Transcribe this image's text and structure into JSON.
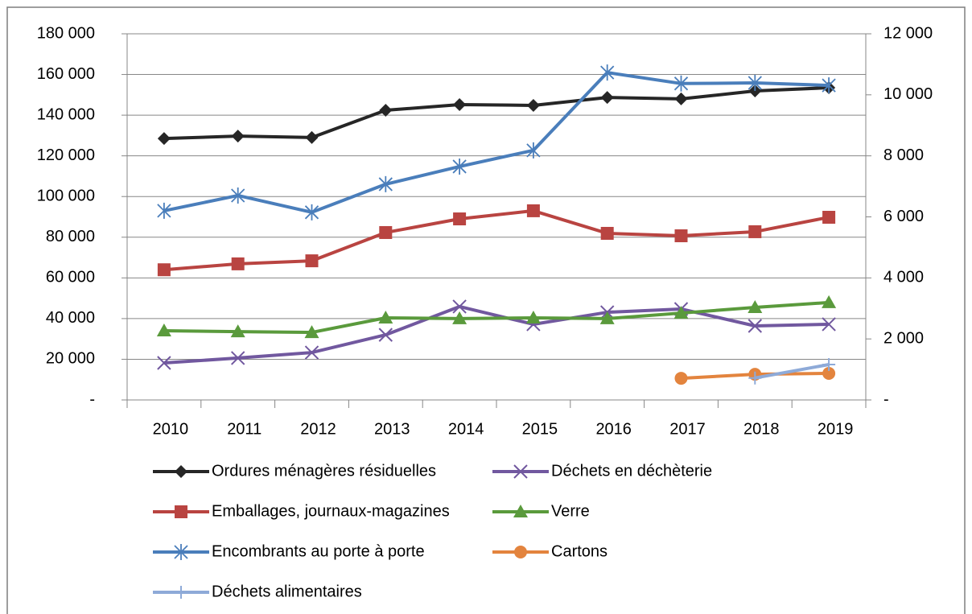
{
  "chart_data": {
    "type": "line",
    "categories": [
      "2010",
      "2011",
      "2012",
      "2013",
      "2014",
      "2015",
      "2016",
      "2017",
      "2018",
      "2019"
    ],
    "series": [
      {
        "name": "Ordures ménagères résiduelles",
        "color": "#262626",
        "marker": "diamond",
        "values": [
          128500,
          129700,
          129000,
          142400,
          145200,
          144800,
          148700,
          148000,
          151900,
          153500
        ]
      },
      {
        "name": "Déchets en déchèterie",
        "color": "#71589f",
        "marker": "x",
        "values": [
          18200,
          20600,
          23300,
          32000,
          45900,
          37200,
          43100,
          44700,
          36400,
          37200
        ]
      },
      {
        "name": "Emballages, journaux-magazines",
        "color": "#b94441",
        "marker": "square",
        "values": [
          64000,
          66900,
          68400,
          82300,
          89000,
          93000,
          81900,
          80700,
          82700,
          89800
        ]
      },
      {
        "name": "Verre",
        "color": "#5a9a3c",
        "marker": "triangle",
        "values": [
          34000,
          33600,
          33200,
          40350,
          40000,
          40350,
          40000,
          42700,
          45500,
          47900
        ]
      },
      {
        "name": "Encombrants au porte à porte",
        "color": "#4a7ebb",
        "marker": "asterisk",
        "axis": "y2",
        "values": [
          6200,
          6700,
          6150,
          7070,
          7650,
          8180,
          10730,
          10370,
          10390,
          10310
        ]
      },
      {
        "name": "Cartons",
        "color": "#e3843e",
        "marker": "circle",
        "axis": "y2",
        "values": [
          null,
          null,
          null,
          null,
          null,
          null,
          null,
          710,
          840,
          870
        ]
      },
      {
        "name": "Déchets alimentaires",
        "color": "#8eaad8",
        "marker": "plus",
        "axis": "y2",
        "values": [
          null,
          null,
          null,
          null,
          null,
          null,
          null,
          null,
          720,
          1160
        ]
      }
    ],
    "ylim": [
      0,
      180000
    ],
    "yticks": [
      {
        "value": 0,
        "label": "-"
      },
      {
        "value": 20000,
        "label": "20 000"
      },
      {
        "value": 40000,
        "label": "40 000"
      },
      {
        "value": 60000,
        "label": "60 000"
      },
      {
        "value": 80000,
        "label": "80 000"
      },
      {
        "value": 100000,
        "label": "100 000"
      },
      {
        "value": 120000,
        "label": "120 000"
      },
      {
        "value": 140000,
        "label": "140 000"
      },
      {
        "value": 160000,
        "label": "160 000"
      },
      {
        "value": 180000,
        "label": "180 000"
      }
    ],
    "y2lim": [
      0,
      12000
    ],
    "y2ticks": [
      {
        "value": 0,
        "label": "-"
      },
      {
        "value": 2000,
        "label": "2 000"
      },
      {
        "value": 4000,
        "label": "4 000"
      },
      {
        "value": 6000,
        "label": "6 000"
      },
      {
        "value": 8000,
        "label": "8 000"
      },
      {
        "value": 10000,
        "label": "10 000"
      },
      {
        "value": 12000,
        "label": "12 000"
      }
    ],
    "grid": true,
    "legend": "bottom"
  }
}
